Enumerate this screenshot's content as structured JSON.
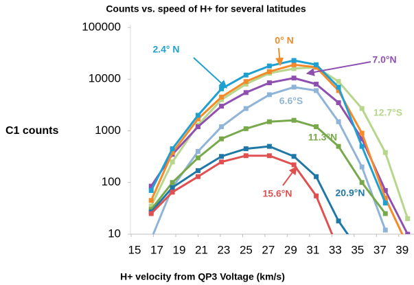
{
  "chart_data": {
    "type": "line",
    "title": "Counts vs. speed  of H+ for several latitudes",
    "xlabel": "H+ velocity from QP3 Voltage (km/s)",
    "ylabel": "C1 counts",
    "log_y": true,
    "xlim": [
      15,
      40
    ],
    "xticks": [
      15,
      17,
      19,
      21,
      23,
      25,
      27,
      29,
      31,
      33,
      35,
      37,
      39
    ],
    "ylim": [
      10,
      100000
    ],
    "yticks": [
      10,
      100,
      1000,
      10000,
      100000
    ],
    "x": [
      16.8,
      18.7,
      21,
      23.1,
      25.3,
      27.4,
      29.6,
      31.6,
      33.6,
      35.7,
      37.8,
      39.8
    ],
    "series": [
      {
        "name": "12.7°S",
        "color": "#b5d68b",
        "values": [
          35,
          250,
          1300,
          4000,
          8000,
          13000,
          16000,
          17000,
          9000,
          2700,
          380,
          20
        ]
      },
      {
        "name": "6.6°S",
        "color": "#8fb4d8",
        "values": [
          8,
          80,
          400,
          1200,
          2700,
          5000,
          7000,
          6000,
          1500,
          200,
          12,
          null
        ]
      },
      {
        "name": "7.0°N",
        "color": "#8e4fb0",
        "values": [
          85,
          350,
          1200,
          3000,
          5500,
          8500,
          10500,
          8000,
          3500,
          700,
          70,
          10
        ]
      },
      {
        "name": "0° N",
        "color": "#f58a2a",
        "values": [
          45,
          380,
          1700,
          4500,
          9000,
          14000,
          19000,
          17000,
          6000,
          900,
          50,
          6
        ]
      },
      {
        "name": "2.4° N",
        "color": "#1fa0d0",
        "values": [
          70,
          450,
          2000,
          6500,
          12000,
          18000,
          23000,
          19000,
          7000,
          500,
          40,
          null
        ]
      },
      {
        "name": "11.3°N",
        "color": "#77a94a",
        "values": [
          30,
          100,
          300,
          700,
          1100,
          1500,
          1600,
          1200,
          500,
          100,
          25,
          null
        ]
      },
      {
        "name": "20.9°N",
        "color": "#1f77a8",
        "values": [
          27,
          80,
          170,
          320,
          450,
          500,
          320,
          130,
          18,
          4,
          null,
          null
        ]
      },
      {
        "name": "15.6°N",
        "color": "#e05050",
        "values": [
          25,
          65,
          130,
          250,
          330,
          330,
          220,
          55,
          5,
          null,
          null,
          null
        ]
      }
    ]
  }
}
